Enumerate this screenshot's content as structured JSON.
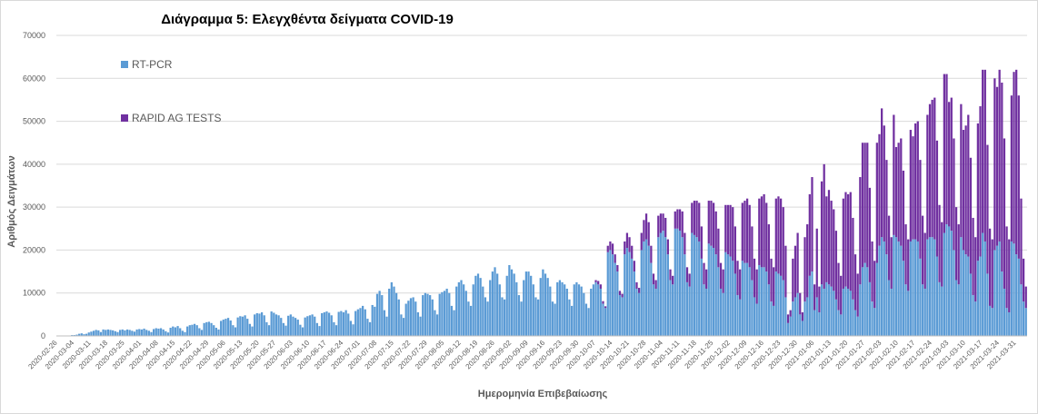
{
  "chart_data": {
    "type": "bar",
    "stacked": true,
    "title": "Διάγραμμα 5: Ελεγχθέντα δείγματα COVID-19",
    "y_label": "Αριθμός Δειγμάτων",
    "x_label": "Ημερομηνία Επιβεβαίωσης",
    "ylim": [
      0,
      70000
    ],
    "yticks": [
      0,
      10000,
      20000,
      30000,
      40000,
      50000,
      60000,
      70000
    ],
    "grid": true,
    "legend": "top-left",
    "categories": [
      "2020-02-26",
      null,
      null,
      null,
      null,
      null,
      null,
      "2020-03-04",
      null,
      null,
      null,
      null,
      null,
      null,
      "2020-03-11",
      null,
      null,
      null,
      null,
      null,
      null,
      "2020-03-18",
      null,
      null,
      null,
      null,
      null,
      null,
      "2020-03-25",
      null,
      null,
      null,
      null,
      null,
      null,
      "2020-04-01",
      null,
      null,
      null,
      null,
      null,
      null,
      "2020-04-08",
      null,
      null,
      null,
      null,
      null,
      null,
      "2020-04-15",
      null,
      null,
      null,
      null,
      null,
      null,
      "2020-04-22",
      null,
      null,
      null,
      null,
      null,
      null,
      "2020-04-29",
      null,
      null,
      null,
      null,
      null,
      null,
      "2020-05-06",
      null,
      null,
      null,
      null,
      null,
      null,
      "2020-05-13",
      null,
      null,
      null,
      null,
      null,
      null,
      "2020-05-20",
      null,
      null,
      null,
      null,
      null,
      null,
      "2020-05-27",
      null,
      null,
      null,
      null,
      null,
      null,
      "2020-06-03",
      null,
      null,
      null,
      null,
      null,
      null,
      "2020-06-10",
      null,
      null,
      null,
      null,
      null,
      null,
      "2020-06-17",
      null,
      null,
      null,
      null,
      null,
      null,
      "2020-06-24",
      null,
      null,
      null,
      null,
      null,
      null,
      "2020-07-01",
      null,
      null,
      null,
      null,
      null,
      null,
      "2020-07-08",
      null,
      null,
      null,
      null,
      null,
      null,
      "2020-07-15",
      null,
      null,
      null,
      null,
      null,
      null,
      "2020-07-22",
      null,
      null,
      null,
      null,
      null,
      null,
      "2020-07-29",
      null,
      null,
      null,
      null,
      null,
      null,
      "2020-08-05",
      null,
      null,
      null,
      null,
      null,
      null,
      "2020-08-12",
      null,
      null,
      null,
      null,
      null,
      null,
      "2020-08-19",
      null,
      null,
      null,
      null,
      null,
      null,
      "2020-08-26",
      null,
      null,
      null,
      null,
      null,
      null,
      "2020-09-02",
      null,
      null,
      null,
      null,
      null,
      null,
      "2020-09-09",
      null,
      null,
      null,
      null,
      null,
      null,
      "2020-09-16",
      null,
      null,
      null,
      null,
      null,
      null,
      "2020-09-23",
      null,
      null,
      null,
      null,
      null,
      null,
      "2020-09-30",
      null,
      null,
      null,
      null,
      null,
      null,
      "2020-10-07",
      null,
      null,
      null,
      null,
      null,
      null,
      "2020-10-14",
      null,
      null,
      null,
      null,
      null,
      null,
      "2020-10-21",
      null,
      null,
      null,
      null,
      null,
      null,
      "2020-10-28",
      null,
      null,
      null,
      null,
      null,
      null,
      "2020-11-04",
      null,
      null,
      null,
      null,
      null,
      null,
      "2020-11-11",
      null,
      null,
      null,
      null,
      null,
      null,
      "2020-11-18",
      null,
      null,
      null,
      null,
      null,
      null,
      "2020-11-25",
      null,
      null,
      null,
      null,
      null,
      null,
      "2020-12-02",
      null,
      null,
      null,
      null,
      null,
      null,
      "2020-12-09",
      null,
      null,
      null,
      null,
      null,
      null,
      "2020-12-16",
      null,
      null,
      null,
      null,
      null,
      null,
      "2020-12-23",
      null,
      null,
      null,
      null,
      null,
      null,
      "2020-12-30",
      null,
      null,
      null,
      null,
      null,
      null,
      "2021-01-06",
      null,
      null,
      null,
      null,
      null,
      null,
      "2021-01-13",
      null,
      null,
      null,
      null,
      null,
      null,
      "2021-01-20",
      null,
      null,
      null,
      null,
      null,
      null,
      "2021-01-27",
      null,
      null,
      null,
      null,
      null,
      null,
      "2021-02-03",
      null,
      null,
      null,
      null,
      null,
      null,
      "2021-02-10",
      null,
      null,
      null,
      null,
      null,
      null,
      "2021-02-17",
      null,
      null,
      null,
      null,
      null,
      null,
      "2021-02-24",
      null,
      null,
      null,
      null,
      null,
      null,
      "2021-03-03",
      null,
      null,
      null,
      null,
      null,
      null,
      "2021-03-10",
      null,
      null,
      null,
      null,
      null,
      null,
      "2021-03-17",
      null,
      null,
      null,
      null,
      null,
      null,
      "2021-03-24",
      null,
      null,
      null,
      null,
      null,
      null,
      "2021-03-31",
      null,
      null,
      null,
      null
    ],
    "series": [
      {
        "name": "RT-PCR",
        "color": "#5b9bd5",
        "values": [
          0,
          0,
          50,
          100,
          0,
          100,
          200,
          200,
          300,
          500,
          600,
          400,
          500,
          800,
          1000,
          1200,
          1400,
          1300,
          900,
          1500,
          1400,
          1500,
          1400,
          1300,
          1100,
          900,
          1400,
          1500,
          1300,
          1500,
          1400,
          1200,
          1000,
          1500,
          1600,
          1500,
          1700,
          1400,
          1200,
          900,
          1600,
          1800,
          1700,
          1800,
          1500,
          1100,
          800,
          1900,
          2200,
          2000,
          2300,
          1800,
          1200,
          900,
          2200,
          2500,
          2600,
          2800,
          2500,
          1800,
          1400,
          3000,
          3200,
          3300,
          3000,
          2500,
          1900,
          1500,
          3500,
          3800,
          4000,
          4200,
          3600,
          2500,
          2000,
          4300,
          4600,
          4500,
          4800,
          4000,
          2800,
          2200,
          5000,
          5300,
          5200,
          5500,
          4800,
          3200,
          2500,
          5700,
          5400,
          5000,
          4800,
          4200,
          3000,
          2400,
          4700,
          5000,
          4500,
          4200,
          3800,
          2600,
          2000,
          4300,
          4600,
          4800,
          5000,
          4500,
          3000,
          2300,
          5300,
          5500,
          5700,
          5400,
          4800,
          3200,
          2500,
          5600,
          5800,
          5500,
          6000,
          5200,
          3500,
          2700,
          5800,
          6200,
          6500,
          7000,
          6200,
          4000,
          3200,
          7200,
          6800,
          9800,
          10500,
          9500,
          6000,
          4500,
          11000,
          12500,
          11500,
          10000,
          8500,
          5000,
          4200,
          7500,
          8200,
          8800,
          9000,
          8000,
          5500,
          4500,
          9500,
          10000,
          9800,
          9500,
          8500,
          6000,
          5000,
          9800,
          10200,
          10500,
          11000,
          10000,
          7000,
          6000,
          11500,
          12500,
          13000,
          12000,
          10500,
          8000,
          7000,
          12000,
          14000,
          14500,
          13500,
          11500,
          9000,
          8000,
          13000,
          15000,
          16000,
          14500,
          12000,
          9000,
          8500,
          14000,
          16500,
          15500,
          14500,
          12500,
          9500,
          8000,
          13000,
          15000,
          15000,
          14000,
          12000,
          9000,
          8500,
          13500,
          15500,
          14500,
          13500,
          11500,
          8000,
          7500,
          12500,
          13000,
          12500,
          12000,
          11000,
          8500,
          7000,
          12000,
          12500,
          12000,
          11500,
          10000,
          7500,
          6500,
          11000,
          12000,
          12500,
          12000,
          11000,
          7500,
          6500,
          19500,
          20000,
          19000,
          17000,
          15000,
          9500,
          9000,
          19000,
          20500,
          19500,
          18000,
          15000,
          11000,
          10000,
          20000,
          22000,
          22500,
          21000,
          17000,
          12000,
          11000,
          23000,
          24000,
          24500,
          23000,
          19000,
          13000,
          12000,
          25000,
          25000,
          24500,
          23000,
          19000,
          12500,
          11500,
          24000,
          23500,
          23000,
          22000,
          18000,
          12000,
          11000,
          21500,
          21000,
          20500,
          19000,
          16000,
          11000,
          10000,
          19500,
          19000,
          18500,
          17500,
          14500,
          9500,
          8500,
          17500,
          17000,
          17000,
          16000,
          13000,
          9000,
          7500,
          16500,
          16000,
          16000,
          15000,
          12000,
          8000,
          7000,
          15000,
          14500,
          14000,
          13000,
          9000,
          3000,
          4500,
          8000,
          9000,
          10000,
          5000,
          3500,
          8000,
          9000,
          14000,
          15000,
          6000,
          9000,
          5500,
          12000,
          11000,
          12500,
          12000,
          11500,
          10500,
          8500,
          6000,
          5000,
          11000,
          11500,
          11000,
          10500,
          8500,
          6000,
          4500,
          12000,
          16000,
          17000,
          16000,
          12500,
          8000,
          6500,
          17000,
          21000,
          23000,
          22000,
          19000,
          13000,
          11000,
          23500,
          23000,
          22000,
          21000,
          17500,
          12000,
          10500,
          22000,
          22500,
          22500,
          22000,
          18000,
          12000,
          11000,
          22500,
          23000,
          23000,
          22500,
          18500,
          12500,
          11500,
          24000,
          26000,
          25500,
          24500,
          20000,
          13000,
          12000,
          23000,
          20000,
          19000,
          18500,
          14500,
          9500,
          8000,
          17500,
          18500,
          24000,
          22000,
          14500,
          7000,
          6500,
          20000,
          21000,
          22000,
          15000,
          11000,
          6500,
          5500,
          22000,
          21500,
          19000,
          18000,
          12000,
          8000,
          6500
        ]
      },
      {
        "name": "RAPID AG TESTS",
        "color": "#7030a0",
        "values": [
          0,
          0,
          0,
          0,
          0,
          0,
          0,
          0,
          0,
          0,
          0,
          0,
          0,
          0,
          0,
          0,
          0,
          0,
          0,
          0,
          0,
          0,
          0,
          0,
          0,
          0,
          0,
          0,
          0,
          0,
          0,
          0,
          0,
          0,
          0,
          0,
          0,
          0,
          0,
          0,
          0,
          0,
          0,
          0,
          0,
          0,
          0,
          0,
          0,
          0,
          0,
          0,
          0,
          0,
          0,
          0,
          0,
          0,
          0,
          0,
          0,
          0,
          0,
          0,
          0,
          0,
          0,
          0,
          0,
          0,
          0,
          0,
          0,
          0,
          0,
          0,
          0,
          0,
          0,
          0,
          0,
          0,
          0,
          0,
          0,
          0,
          0,
          0,
          0,
          0,
          0,
          0,
          0,
          0,
          0,
          0,
          0,
          0,
          0,
          0,
          0,
          0,
          0,
          0,
          0,
          0,
          0,
          0,
          0,
          0,
          0,
          0,
          0,
          0,
          0,
          0,
          0,
          0,
          0,
          0,
          0,
          0,
          0,
          0,
          0,
          0,
          0,
          0,
          0,
          0,
          0,
          0,
          0,
          0,
          0,
          0,
          0,
          0,
          0,
          0,
          0,
          0,
          0,
          0,
          0,
          0,
          0,
          0,
          0,
          0,
          0,
          0,
          0,
          0,
          0,
          0,
          0,
          0,
          0,
          0,
          0,
          0,
          0,
          0,
          0,
          0,
          0,
          0,
          0,
          0,
          0,
          0,
          0,
          0,
          0,
          0,
          0,
          0,
          0,
          0,
          0,
          0,
          0,
          0,
          0,
          0,
          0,
          0,
          0,
          0,
          0,
          0,
          0,
          0,
          0,
          0,
          0,
          0,
          0,
          0,
          0,
          0,
          0,
          0,
          0,
          0,
          0,
          0,
          0,
          0,
          0,
          0,
          0,
          0,
          0,
          0,
          0,
          0,
          0,
          0,
          0,
          0,
          0,
          0,
          500,
          800,
          1000,
          600,
          400,
          1500,
          2000,
          2500,
          2000,
          1500,
          1000,
          800,
          3000,
          3500,
          3500,
          3000,
          2500,
          1500,
          1200,
          4000,
          5000,
          6000,
          5500,
          4000,
          2500,
          2000,
          5000,
          4500,
          4000,
          4500,
          3500,
          2500,
          2000,
          4000,
          4500,
          5000,
          6000,
          5000,
          3500,
          3000,
          7000,
          8000,
          8500,
          9000,
          7500,
          5000,
          4500,
          10000,
          10500,
          10500,
          10000,
          9000,
          6000,
          5500,
          11000,
          11500,
          12000,
          12500,
          11000,
          8000,
          7000,
          13500,
          14500,
          15000,
          14500,
          12500,
          9000,
          8000,
          15500,
          16500,
          17000,
          16000,
          14000,
          10000,
          9000,
          17000,
          18000,
          18000,
          17000,
          12000,
          2000,
          1500,
          10000,
          12000,
          14000,
          5000,
          2000,
          15000,
          17000,
          19000,
          22000,
          6000,
          16000,
          6000,
          24000,
          29000,
          20000,
          22000,
          20000,
          19000,
          16000,
          11000,
          9000,
          21000,
          22000,
          22000,
          23000,
          19000,
          13000,
          10000,
          25000,
          29000,
          28000,
          29000,
          22000,
          14000,
          11000,
          28000,
          26000,
          30000,
          27000,
          22000,
          15000,
          12000,
          28000,
          21000,
          23000,
          25000,
          21000,
          14000,
          12000,
          26000,
          24000,
          27000,
          28000,
          23000,
          16000,
          13000,
          29000,
          31000,
          32000,
          33000,
          27000,
          18000,
          15000,
          37000,
          35000,
          29000,
          31000,
          26000,
          17000,
          14000,
          31000,
          28000,
          30000,
          33000,
          27000,
          18000,
          15000,
          32000,
          35000,
          38000,
          40000,
          30000,
          18000,
          16000,
          40000,
          37000,
          40000,
          44000,
          35000,
          19000,
          17000,
          34000,
          40000,
          43000,
          38000,
          20000,
          10000,
          5000
        ]
      }
    ]
  }
}
